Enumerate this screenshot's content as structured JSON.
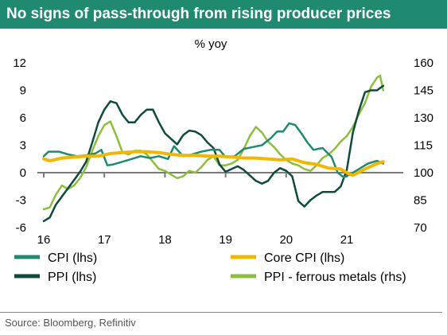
{
  "title": "No signs of pass-through from rising producer prices",
  "source": "Source: Bloomberg, Refinitiv",
  "colors": {
    "title_bg": "#1f8a70",
    "cpi": "#1f8a70",
    "core_cpi": "#f2b800",
    "ppi": "#0f4a3c",
    "ppi_ferrous": "#8cbf3f",
    "axis": "#7a7a7a"
  },
  "chart_data": {
    "type": "line",
    "title": "No signs of pass-through from rising producer prices",
    "ylabel": "% yoy",
    "x_ticks": [
      "16",
      "17",
      "18",
      "19",
      "20",
      "21"
    ],
    "x_range": [
      2016,
      2021.8
    ],
    "ylim_left": [
      -6,
      12
    ],
    "yticks_left": [
      "12",
      "9",
      "6",
      "3",
      "0",
      "-3",
      "-6"
    ],
    "ylim_right": [
      70,
      160
    ],
    "yticks_right": [
      "160",
      "145",
      "130",
      "115",
      "100",
      "85",
      "70"
    ],
    "grid": false,
    "legend": "bottom",
    "series": [
      {
        "name": "CPI (lhs)",
        "axis": "left",
        "key": "cpi",
        "x": [
          2016.0,
          2016.08,
          2016.25,
          2016.4,
          2016.55,
          2016.7,
          2016.85,
          2016.95,
          2017.05,
          2017.15,
          2017.3,
          2017.45,
          2017.6,
          2017.75,
          2017.9,
          2018.05,
          2018.15,
          2018.3,
          2018.45,
          2018.6,
          2018.75,
          2018.9,
          2019.0,
          2019.15,
          2019.3,
          2019.45,
          2019.6,
          2019.75,
          2019.85,
          2019.95,
          2020.05,
          2020.15,
          2020.25,
          2020.35,
          2020.45,
          2020.6,
          2020.75,
          2020.85,
          2020.95,
          2021.05,
          2021.2,
          2021.35,
          2021.5,
          2021.6
        ],
        "y": [
          1.8,
          2.3,
          2.3,
          2.0,
          1.8,
          1.9,
          2.1,
          2.5,
          0.8,
          0.9,
          1.2,
          1.5,
          1.8,
          1.6,
          1.8,
          1.5,
          2.9,
          1.8,
          2.0,
          2.3,
          2.5,
          2.5,
          1.7,
          1.8,
          2.6,
          2.8,
          3.0,
          3.8,
          4.5,
          4.5,
          5.4,
          5.2,
          4.3,
          3.3,
          2.5,
          2.7,
          1.7,
          0.0,
          -0.5,
          -0.2,
          0.4,
          1.0,
          1.3,
          1.0
        ]
      },
      {
        "name": "Core CPI (lhs)",
        "axis": "left",
        "key": "core_cpi",
        "x": [
          2016.0,
          2016.1,
          2016.3,
          2016.5,
          2016.7,
          2016.9,
          2017.1,
          2017.3,
          2017.5,
          2017.7,
          2017.9,
          2018.1,
          2018.3,
          2018.5,
          2018.7,
          2018.9,
          2019.1,
          2019.3,
          2019.5,
          2019.7,
          2019.9,
          2020.1,
          2020.3,
          2020.5,
          2020.7,
          2020.9,
          2021.0,
          2021.1,
          2021.3,
          2021.5,
          2021.6
        ],
        "y": [
          1.5,
          1.3,
          1.6,
          1.7,
          1.8,
          1.8,
          2.1,
          2.2,
          2.3,
          2.3,
          2.2,
          2.0,
          1.9,
          1.9,
          1.8,
          1.8,
          1.7,
          1.6,
          1.6,
          1.5,
          1.4,
          1.5,
          1.1,
          0.9,
          0.5,
          0.4,
          0.0,
          -0.3,
          0.4,
          1.0,
          1.2
        ]
      },
      {
        "name": "PPI (lhs)",
        "axis": "left",
        "key": "ppi",
        "x": [
          2016.0,
          2016.1,
          2016.2,
          2016.3,
          2016.4,
          2016.5,
          2016.6,
          2016.7,
          2016.8,
          2016.9,
          2017.0,
          2017.1,
          2017.2,
          2017.3,
          2017.4,
          2017.5,
          2017.6,
          2017.7,
          2017.8,
          2017.9,
          2018.0,
          2018.1,
          2018.2,
          2018.3,
          2018.4,
          2018.5,
          2018.6,
          2018.7,
          2018.8,
          2018.9,
          2019.0,
          2019.1,
          2019.2,
          2019.3,
          2019.4,
          2019.5,
          2019.6,
          2019.7,
          2019.8,
          2019.9,
          2020.0,
          2020.1,
          2020.2,
          2020.3,
          2020.4,
          2020.5,
          2020.6,
          2020.7,
          2020.8,
          2020.9,
          2021.0,
          2021.1,
          2021.2,
          2021.3,
          2021.4,
          2021.5,
          2021.6
        ],
        "y": [
          -5.3,
          -4.9,
          -3.5,
          -2.6,
          -1.7,
          -0.8,
          0.1,
          1.2,
          3.3,
          5.5,
          6.9,
          7.8,
          7.6,
          6.3,
          5.5,
          5.5,
          6.3,
          6.9,
          6.9,
          5.5,
          4.3,
          3.7,
          3.1,
          4.1,
          4.6,
          4.5,
          4.1,
          3.3,
          2.7,
          0.9,
          0.1,
          0.4,
          0.7,
          0.3,
          -0.3,
          -0.9,
          -1.2,
          -0.9,
          0.0,
          0.5,
          0.2,
          -0.4,
          -3.1,
          -3.7,
          -3.0,
          -2.5,
          -2.1,
          -2.1,
          -2.1,
          -1.5,
          0.3,
          4.4,
          6.8,
          8.8,
          9.0,
          9.0,
          9.5
        ]
      },
      {
        "name": "PPI - ferrous metals (rhs)",
        "axis": "right",
        "key": "ppi_ferrous",
        "x": [
          2016.0,
          2016.1,
          2016.2,
          2016.3,
          2016.4,
          2016.5,
          2016.6,
          2016.7,
          2016.8,
          2016.9,
          2017.0,
          2017.1,
          2017.2,
          2017.3,
          2017.4,
          2017.5,
          2017.6,
          2017.7,
          2017.8,
          2017.9,
          2018.0,
          2018.1,
          2018.2,
          2018.3,
          2018.4,
          2018.5,
          2018.6,
          2018.7,
          2018.8,
          2018.9,
          2019.0,
          2019.1,
          2019.2,
          2019.3,
          2019.4,
          2019.5,
          2019.6,
          2019.7,
          2019.8,
          2019.9,
          2020.0,
          2020.1,
          2020.2,
          2020.3,
          2020.4,
          2020.5,
          2020.6,
          2020.7,
          2020.8,
          2020.9,
          2021.0,
          2021.1,
          2021.2,
          2021.3,
          2021.4,
          2021.5,
          2021.55,
          2021.6
        ],
        "y": [
          80,
          81,
          88,
          93,
          91,
          93,
          97,
          103,
          112,
          120,
          126,
          128,
          120,
          111,
          110,
          112,
          112,
          110,
          106,
          102,
          101,
          99,
          97,
          98,
          101,
          100,
          103,
          107,
          109,
          104,
          104,
          105,
          107,
          113,
          120,
          125,
          122,
          117,
          114,
          110,
          107,
          105,
          104,
          102,
          101,
          104,
          108,
          110,
          113,
          117,
          120,
          125,
          132,
          138,
          147,
          152,
          153,
          145
        ]
      }
    ]
  }
}
